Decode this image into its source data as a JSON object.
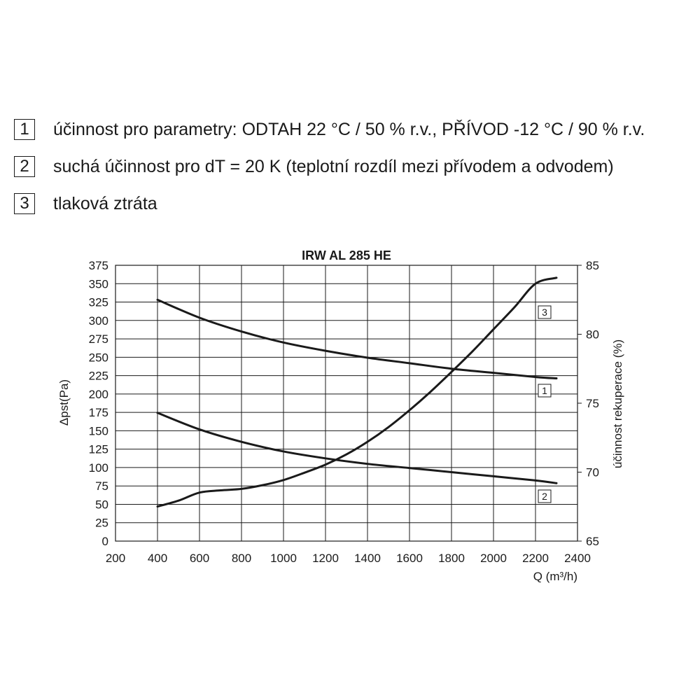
{
  "legend": [
    {
      "num": "1",
      "text": "účinnost pro parametry: ODTAH 22 °C / 50 % r.v., PŘÍVOD -12 °C / 90 % r.v."
    },
    {
      "num": "2",
      "text": "suchá účinnost pro dT = 20 K (teplotní rozdíl mezi přívodem a odvodem)"
    },
    {
      "num": "3",
      "text": "tlaková ztráta"
    }
  ],
  "chart_data": {
    "type": "line",
    "title": "IRW AL 285 HE",
    "xlabel": "Q (m³/h)",
    "ylabel_left": "Δpst(Pa)",
    "ylabel_right": "účinnost rekuperace (%)",
    "xlim": [
      200,
      2400
    ],
    "ylim_left": [
      0,
      375
    ],
    "ylim_right": [
      65,
      85
    ],
    "x_ticks": [
      200,
      400,
      600,
      800,
      1000,
      1200,
      1400,
      1600,
      1800,
      2000,
      2200,
      2400
    ],
    "y_ticks_left": [
      0,
      25,
      50,
      75,
      100,
      125,
      150,
      175,
      200,
      225,
      250,
      275,
      300,
      325,
      350,
      375
    ],
    "y_ticks_right": [
      65,
      70,
      75,
      80,
      85
    ],
    "grid": true,
    "series": [
      {
        "label": "1",
        "axis": "right",
        "x": [
          400,
          600,
          800,
          1000,
          1200,
          1400,
          1600,
          1800,
          2000,
          2200,
          2300
        ],
        "y": [
          82.5,
          81.2,
          80.2,
          79.4,
          78.8,
          78.3,
          77.9,
          77.5,
          77.2,
          76.9,
          76.8
        ]
      },
      {
        "label": "2",
        "axis": "right",
        "x": [
          400,
          600,
          800,
          1000,
          1200,
          1400,
          1600,
          1800,
          2000,
          2200,
          2300
        ],
        "y": [
          74.3,
          73.1,
          72.2,
          71.5,
          71.0,
          70.6,
          70.3,
          70.0,
          69.7,
          69.4,
          69.2
        ]
      },
      {
        "label": "3",
        "axis": "left",
        "x": [
          400,
          500,
          600,
          700,
          800,
          900,
          1000,
          1100,
          1200,
          1300,
          1400,
          1500,
          1600,
          1700,
          1800,
          1900,
          2000,
          2100,
          2200,
          2300
        ],
        "y": [
          47,
          55,
          66,
          69,
          71,
          76,
          83,
          93,
          104,
          118,
          135,
          155,
          178,
          203,
          230,
          258,
          288,
          318,
          350,
          358
        ]
      }
    ]
  }
}
